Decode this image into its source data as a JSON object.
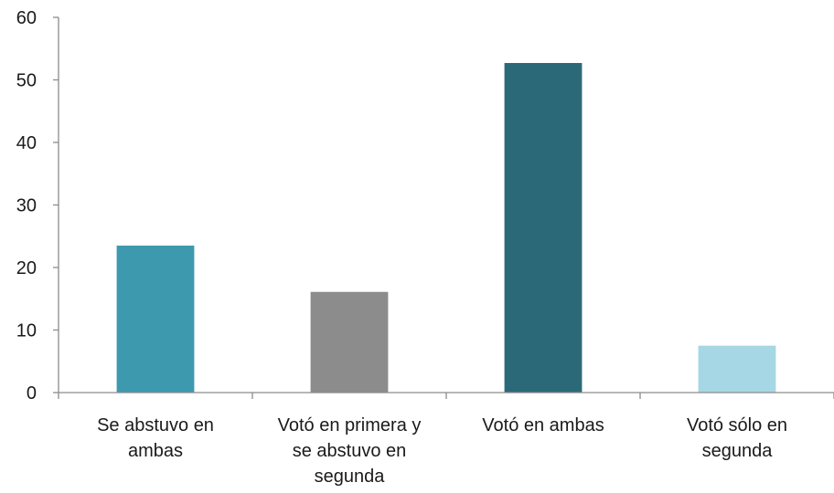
{
  "chart_data": {
    "type": "bar",
    "title": "",
    "xlabel": "",
    "ylabel": "",
    "ylim": [
      0,
      60
    ],
    "yticks": [
      0,
      10,
      20,
      30,
      40,
      50,
      60
    ],
    "grid": false,
    "legend": "none",
    "categories": [
      [
        "Se abstuvo en",
        "ambas"
      ],
      [
        "Votó en primera y",
        "se abstuvo en",
        "segunda"
      ],
      [
        "Votó en ambas"
      ],
      [
        "Votó sólo en",
        "segunda"
      ]
    ],
    "values": [
      23.5,
      16.1,
      52.7,
      7.5
    ],
    "colors": [
      "#3d9aae",
      "#8c8c8c",
      "#2b6978",
      "#a6d7e4"
    ]
  }
}
